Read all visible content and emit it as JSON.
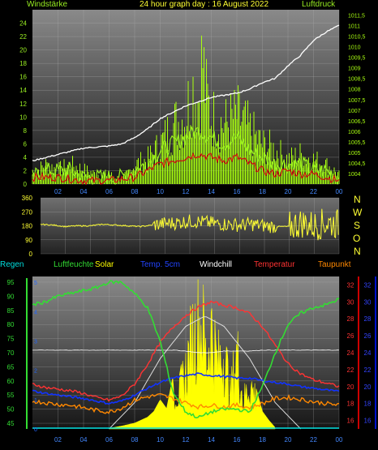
{
  "header": {
    "left_label": "Windstärke",
    "title": "24 hour graph day : 16 August 2022",
    "right_label": "Luftdruck"
  },
  "wind_dir_letters": [
    "N",
    "W",
    "S",
    "O",
    "N"
  ],
  "legend": {
    "regen": "Regen",
    "luftfeuchte": "Luftfeuchte",
    "solar": "Solar",
    "temp5cm": "Temp. 5cm",
    "windchill": "Windchill",
    "temperatur": "Temperatur",
    "taupunkt": "Taupunkt"
  },
  "colors": {
    "wind": "#99ee22",
    "gust": "#a8ff10",
    "pressure": "#ffffff",
    "wind_avg": "#cc1111",
    "wind_dir": "#ffff33",
    "humidity": "#33dd33",
    "solar": "#ffff00",
    "temp5cm": "#1133ff",
    "windchill": "#ffffff",
    "temperature": "#ff3333",
    "dewpoint": "#ff8800",
    "regen": "#00dddd"
  },
  "chart_data": [
    {
      "type": "line",
      "name": "wind-pressure",
      "title": "24 hour graph day : 16 August 2022",
      "x_ticks": [
        "02",
        "04",
        "06",
        "08",
        "10",
        "12",
        "14",
        "16",
        "18",
        "20",
        "22",
        "00"
      ],
      "ylabel_left": "Windstärke",
      "ylabel_right": "Luftdruck",
      "y_left_ticks": [
        0,
        2,
        4,
        6,
        8,
        10,
        12,
        14,
        16,
        18,
        20,
        22,
        24
      ],
      "ylim_left": [
        0,
        26
      ],
      "y_right_ticks": [
        "1004",
        "1004,5",
        "1005",
        "1005,5",
        "1006",
        "1006,5",
        "1007",
        "1007,5",
        "1008",
        "1008,5",
        "1009",
        "1009,5",
        "1010",
        "1010,5",
        "1011",
        "1011,5"
      ],
      "ylim_right": [
        1003.5,
        1011.75
      ],
      "series": [
        {
          "key": "pressure",
          "hours": [
            0,
            2,
            4,
            6,
            7,
            8,
            9,
            10,
            11,
            12,
            13,
            14,
            15,
            16,
            17,
            18,
            19,
            20,
            21,
            22,
            23,
            24
          ],
          "values": [
            1004.6,
            1004.9,
            1005.2,
            1005.3,
            1005.4,
            1005.7,
            1006.1,
            1006.6,
            1006.9,
            1007.2,
            1007.4,
            1007.6,
            1007.7,
            1007.8,
            1008.0,
            1008.3,
            1008.5,
            1009.1,
            1009.6,
            1010.3,
            1010.7,
            1011.0
          ]
        },
        {
          "key": "gust",
          "hours": [
            0,
            1,
            2,
            3,
            4,
            5,
            6,
            7,
            8,
            9,
            10,
            11,
            12,
            12.5,
            13,
            13.3,
            13.6,
            14,
            15,
            16,
            17,
            18,
            19,
            20,
            21,
            22,
            23,
            24
          ],
          "values": [
            2,
            4,
            3,
            4,
            3,
            2,
            2,
            1,
            4,
            5,
            8,
            12,
            14,
            20,
            17,
            26,
            18,
            14,
            12,
            14,
            11,
            8,
            7,
            5,
            6,
            5,
            4,
            2
          ]
        },
        {
          "key": "wind",
          "hours": [
            0,
            1,
            2,
            3,
            4,
            5,
            6,
            7,
            8,
            9,
            10,
            11,
            12,
            13,
            14,
            15,
            16,
            17,
            18,
            19,
            20,
            21,
            22,
            23,
            24
          ],
          "values": [
            1,
            2,
            2,
            2,
            1,
            1,
            1,
            1,
            2,
            3,
            5,
            6,
            7,
            8,
            7,
            6,
            7,
            5,
            4,
            3,
            3,
            3,
            2,
            2,
            1
          ]
        },
        {
          "key": "wind_avg",
          "hours": [
            0,
            2,
            4,
            6,
            8,
            9,
            10,
            11,
            12,
            13,
            14,
            15,
            16,
            17,
            18,
            19,
            20,
            21,
            22,
            23,
            24
          ],
          "values": [
            1,
            1,
            0.5,
            0.5,
            1,
            2,
            3,
            3.5,
            4,
            4.5,
            4,
            3.5,
            4,
            3,
            2,
            1.5,
            2,
            1.5,
            1.5,
            1,
            0.5
          ]
        }
      ]
    },
    {
      "type": "line",
      "name": "wind-direction",
      "y_ticks": [
        0,
        90,
        180,
        270,
        360
      ],
      "ylim": [
        0,
        360
      ],
      "series": [
        {
          "key": "wind_dir",
          "hours": [
            0,
            1,
            2,
            3,
            4,
            5,
            6,
            7,
            8,
            9,
            10,
            11,
            12,
            13,
            14,
            15,
            16,
            17,
            18,
            19,
            20,
            21,
            22,
            23,
            24
          ],
          "values": [
            190,
            185,
            175,
            180,
            180,
            190,
            185,
            180,
            175,
            185,
            195,
            200,
            210,
            205,
            195,
            190,
            185,
            190,
            180,
            175,
            175,
            200,
            180,
            200,
            190
          ]
        }
      ]
    },
    {
      "type": "line",
      "name": "humidity-temperature",
      "x_ticks": [
        "02",
        "04",
        "06",
        "08",
        "10",
        "12",
        "14",
        "16",
        "18",
        "20",
        "22",
        "00"
      ],
      "y_left_ticks": [
        45,
        50,
        55,
        60,
        65,
        70,
        75,
        80,
        85,
        90,
        95
      ],
      "ylim_left": [
        43,
        97
      ],
      "y_right_ticks": [
        16,
        18,
        20,
        22,
        24,
        26,
        28,
        30,
        32
      ],
      "ylim_right": [
        15,
        33
      ],
      "solar_y_ticks": [
        0,
        1,
        2,
        3,
        4,
        5
      ],
      "series": [
        {
          "key": "humidity",
          "hours": [
            0,
            1,
            2,
            3,
            4,
            5,
            6,
            7,
            8,
            9,
            10,
            11,
            12,
            13,
            14,
            15,
            16,
            17,
            18,
            19,
            20,
            21,
            22,
            23,
            24
          ],
          "values": [
            87,
            88,
            90,
            91,
            92,
            93,
            95,
            95,
            91,
            86,
            74,
            56,
            49,
            47,
            49,
            50,
            50,
            49,
            58,
            70,
            80,
            84,
            86,
            87,
            89
          ]
        },
        {
          "key": "temperature",
          "hours": [
            0,
            1,
            2,
            3,
            4,
            5,
            6,
            7,
            8,
            9,
            10,
            11,
            12,
            13,
            14,
            15,
            16,
            17,
            18,
            19,
            20,
            21,
            22,
            23,
            24
          ],
          "values": [
            20.3,
            19.9,
            19.7,
            19.5,
            19.2,
            18.7,
            18.4,
            18.9,
            20.3,
            22.6,
            25.2,
            27.0,
            28.4,
            29.4,
            30.0,
            29.6,
            29.3,
            28.6,
            27.1,
            24.9,
            22.7,
            21.5,
            20.8,
            20.4,
            20.0
          ]
        },
        {
          "key": "temp5cm",
          "hours": [
            0,
            1,
            2,
            3,
            4,
            5,
            6,
            7,
            8,
            9,
            10,
            11,
            12,
            13,
            14,
            15,
            16,
            17,
            18,
            19,
            20,
            21,
            22,
            23,
            24
          ],
          "values": [
            19.5,
            19.2,
            19.0,
            18.8,
            18.6,
            18.3,
            18.0,
            18.3,
            19.0,
            19.8,
            20.5,
            21.0,
            21.3,
            21.5,
            21.3,
            21.2,
            21.0,
            21.0,
            20.7,
            20.5,
            20.3,
            20.0,
            19.8,
            19.6,
            19.4
          ]
        },
        {
          "key": "windchill",
          "hours": [
            0,
            1,
            2,
            3,
            4,
            5,
            6,
            7,
            8,
            9,
            10,
            11,
            12,
            13,
            14,
            15,
            16,
            17,
            18,
            19,
            20,
            21,
            22,
            23,
            24
          ],
          "values": [
            24.3,
            24.3,
            24.3,
            24.3,
            24.3,
            24.3,
            24.3,
            24.3,
            24.3,
            24.3,
            24.3,
            24.3,
            24.2,
            24.0,
            24.0,
            24.2,
            24.2,
            24.2,
            24.3,
            24.3,
            24.3,
            24.3,
            24.3,
            24.3,
            24.3
          ]
        },
        {
          "key": "dewpoint",
          "hours": [
            0,
            1,
            2,
            3,
            4,
            5,
            6,
            7,
            8,
            9,
            10,
            11,
            12,
            13,
            14,
            15,
            16,
            17,
            18,
            19,
            20,
            21,
            22,
            23,
            24
          ],
          "values": [
            18.3,
            18.1,
            17.9,
            17.8,
            17.5,
            17.2,
            17.0,
            17.5,
            18.4,
            18.8,
            19.0,
            18.6,
            18.1,
            17.6,
            17.8,
            17.6,
            17.8,
            17.5,
            18.0,
            18.6,
            18.7,
            18.5,
            18.2,
            18.0,
            17.8
          ]
        },
        {
          "key": "solar",
          "hours": [
            6,
            7,
            8,
            9,
            9.5,
            10,
            10.5,
            11,
            11.5,
            12,
            12.5,
            13,
            13.3,
            13.6,
            14,
            14.5,
            15,
            15.5,
            16,
            16.5,
            17,
            17.5,
            18,
            18.5,
            19
          ],
          "values": [
            0.02,
            0.1,
            0.2,
            0.4,
            0.6,
            1.0,
            0.7,
            1.8,
            1.6,
            2.5,
            4.0,
            4.6,
            4.8,
            3.0,
            4.5,
            2.8,
            3.5,
            1.5,
            3.4,
            1.2,
            2.0,
            1.4,
            0.6,
            0.3,
            0.05
          ]
        },
        {
          "key": "solar_max",
          "hours": [
            6,
            8,
            10,
            12,
            13.5,
            15,
            17,
            19,
            21
          ],
          "values": [
            0,
            0.9,
            2.4,
            3.5,
            3.85,
            3.5,
            2.4,
            0.9,
            0
          ]
        }
      ]
    }
  ]
}
